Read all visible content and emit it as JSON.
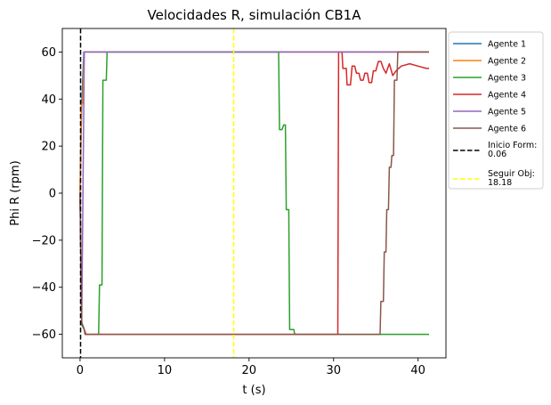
{
  "chart_data": {
    "type": "line",
    "title": "Velocidades R, simulación CB1A",
    "xlabel": "t (s)",
    "ylabel": "Phi R (rpm)",
    "xlim": [
      -2.1,
      43.3
    ],
    "ylim": [
      -70,
      70
    ],
    "xticks": [
      0,
      10,
      20,
      30,
      40
    ],
    "yticks": [
      -60,
      -40,
      -20,
      0,
      20,
      40,
      60
    ],
    "xtick_labels": [
      "0",
      "10",
      "20",
      "30",
      "40"
    ],
    "ytick_labels": [
      "−60",
      "−40",
      "−20",
      "0",
      "20",
      "40",
      "60"
    ],
    "grid": false,
    "legend_position": "outside-right-top",
    "series": [
      {
        "name": "Agente 1",
        "color": "#1f77b4",
        "x": [
          0,
          0.2,
          0.45,
          41.3
        ],
        "y": [
          0,
          38,
          60,
          60
        ]
      },
      {
        "name": "Agente 2",
        "color": "#ff7f0e",
        "x": [
          0,
          0.15,
          0.3,
          0.5,
          41.3
        ],
        "y": [
          0,
          38,
          38,
          60,
          60
        ]
      },
      {
        "name": "Agente 3",
        "color": "#2ca02c",
        "x": [
          0,
          0.2,
          0.5,
          0.6,
          2.2,
          2.3,
          2.6,
          2.7,
          3.1,
          3.2,
          23.5,
          23.6,
          23.9,
          24.1,
          24.3,
          24.4,
          24.7,
          24.8,
          25.3,
          25.4,
          41.3
        ],
        "y": [
          0,
          -56,
          -58,
          -60,
          -60,
          -39,
          -39,
          48,
          48,
          60,
          60,
          27,
          27,
          29,
          29,
          -7,
          -7,
          -58,
          -58,
          -60,
          -60
        ]
      },
      {
        "name": "Agente 4",
        "color": "#d62728",
        "x": [
          0,
          0.2,
          0.5,
          0.7,
          30.5,
          30.6,
          31.0,
          31.1,
          31.5,
          31.6,
          32.0,
          32.2,
          32.5,
          32.7,
          33.0,
          33.2,
          33.5,
          33.7,
          34.0,
          34.2,
          34.5,
          34.7,
          35.0,
          35.3,
          35.6,
          35.9,
          36.2,
          36.6,
          37.0,
          37.4,
          38.0,
          39.0,
          40.0,
          41.0,
          41.3
        ],
        "y": [
          0,
          -55,
          -58,
          -60,
          -60,
          60,
          60,
          53,
          53,
          46,
          46,
          54,
          54,
          51,
          51,
          48,
          48,
          51,
          51,
          47,
          47,
          52,
          52,
          56,
          56,
          53,
          51,
          55,
          50,
          52,
          54,
          55,
          54,
          53,
          53
        ]
      },
      {
        "name": "Agente 5",
        "color": "#9467bd",
        "x": [
          0,
          0.2,
          0.5,
          41.3
        ],
        "y": [
          0,
          -55,
          60,
          60
        ]
      },
      {
        "name": "Agente 6",
        "color": "#8c564b",
        "x": [
          0,
          0.2,
          0.5,
          0.6,
          35.5,
          35.6,
          35.9,
          36.0,
          36.2,
          36.3,
          36.5,
          36.6,
          36.8,
          36.9,
          37.1,
          37.2,
          37.5,
          37.6,
          41.3
        ],
        "y": [
          0,
          -55,
          -58,
          -60,
          -60,
          -46,
          -46,
          -25,
          -25,
          -7,
          -7,
          11,
          11,
          16,
          16,
          48,
          48,
          60,
          60
        ]
      }
    ],
    "reference_lines": [
      {
        "name": "Inicio Form:\n0.06",
        "label_lines": [
          "Inicio Form:",
          "0.06"
        ],
        "x": 0.06,
        "color": "#000000",
        "style": "dashed"
      },
      {
        "name": "Seguir Obj:\n18.18",
        "label_lines": [
          "Seguir Obj:",
          "18.18"
        ],
        "x": 18.18,
        "color": "#ffff00",
        "style": "dashed"
      }
    ]
  }
}
